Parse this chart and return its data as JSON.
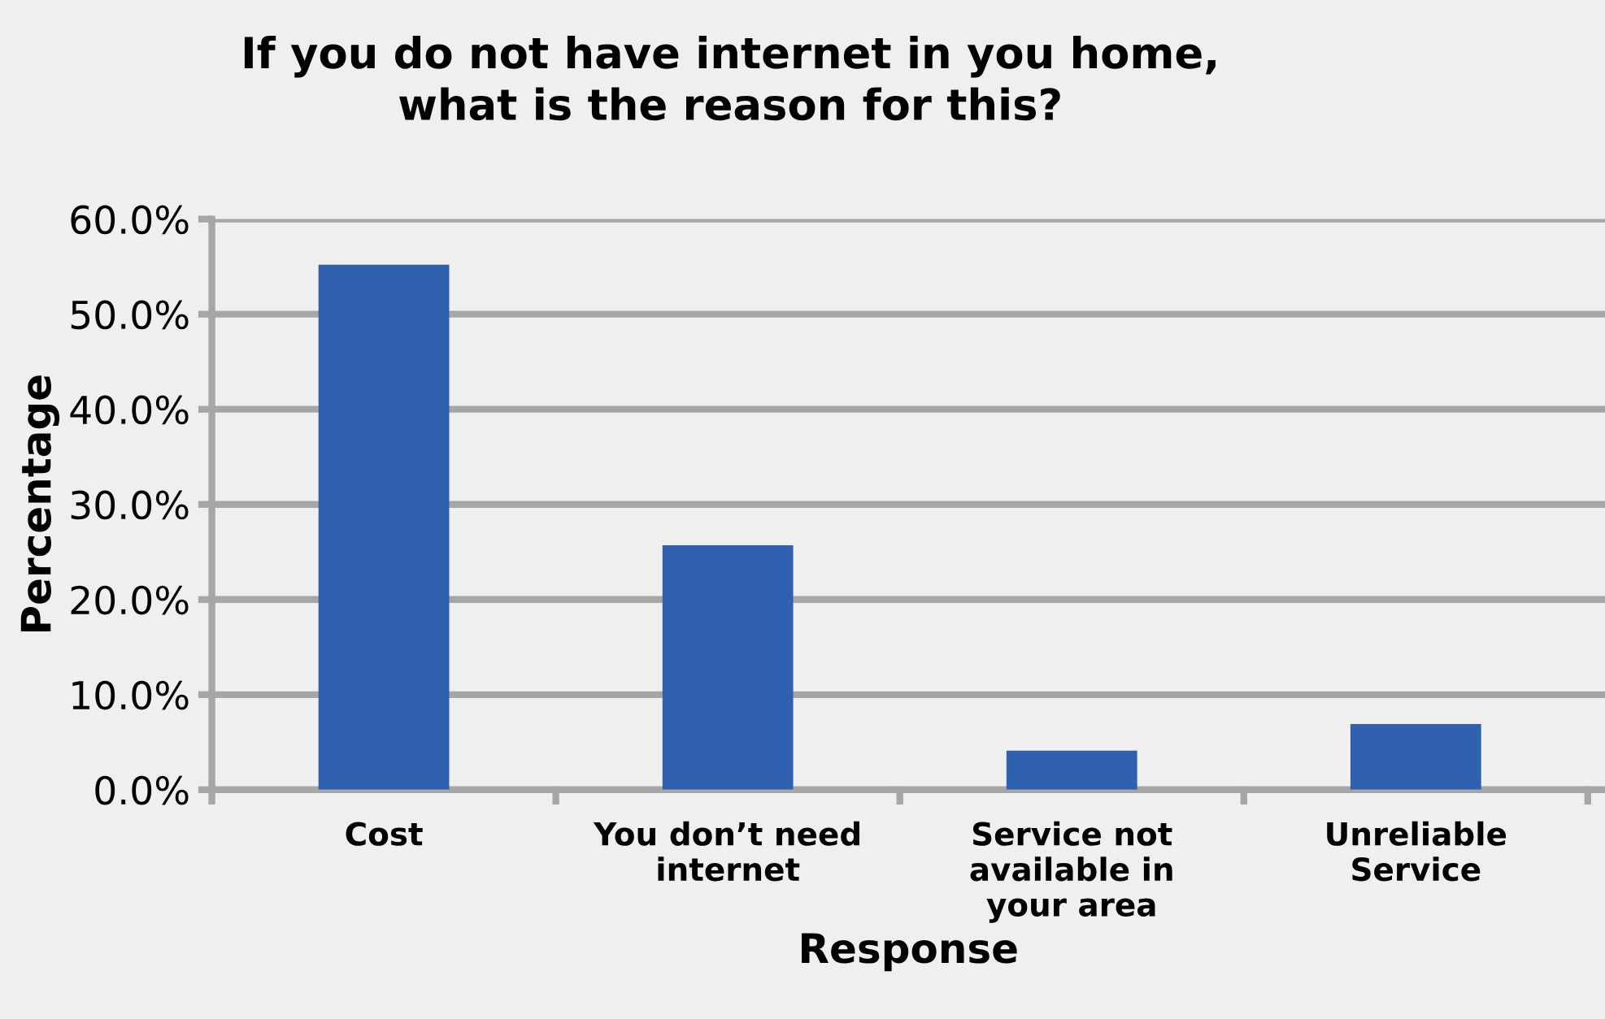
{
  "chart_data": {
    "type": "bar",
    "title": "If you do not have internet in you home,\nwhat is the reason for this?",
    "xlabel": "Response",
    "ylabel": "Percentage",
    "categories": [
      "Cost",
      "You don’t need\ninternet",
      "Service not\navailable in\nyour area",
      "Unreliable\nService"
    ],
    "values": [
      55.2,
      25.7,
      4.1,
      6.9
    ],
    "color": "#3061b0",
    "ylim": [
      0,
      60
    ],
    "yticks": [
      {
        "value": 0,
        "label": "0.0%"
      },
      {
        "value": 10,
        "label": "10.0%"
      },
      {
        "value": 20,
        "label": "20.0%"
      },
      {
        "value": 30,
        "label": "30.0%"
      },
      {
        "value": 40,
        "label": "40.0%"
      },
      {
        "value": 50,
        "label": "50.0%"
      },
      {
        "value": 60,
        "label": "60.0%"
      }
    ],
    "grid": "y"
  }
}
